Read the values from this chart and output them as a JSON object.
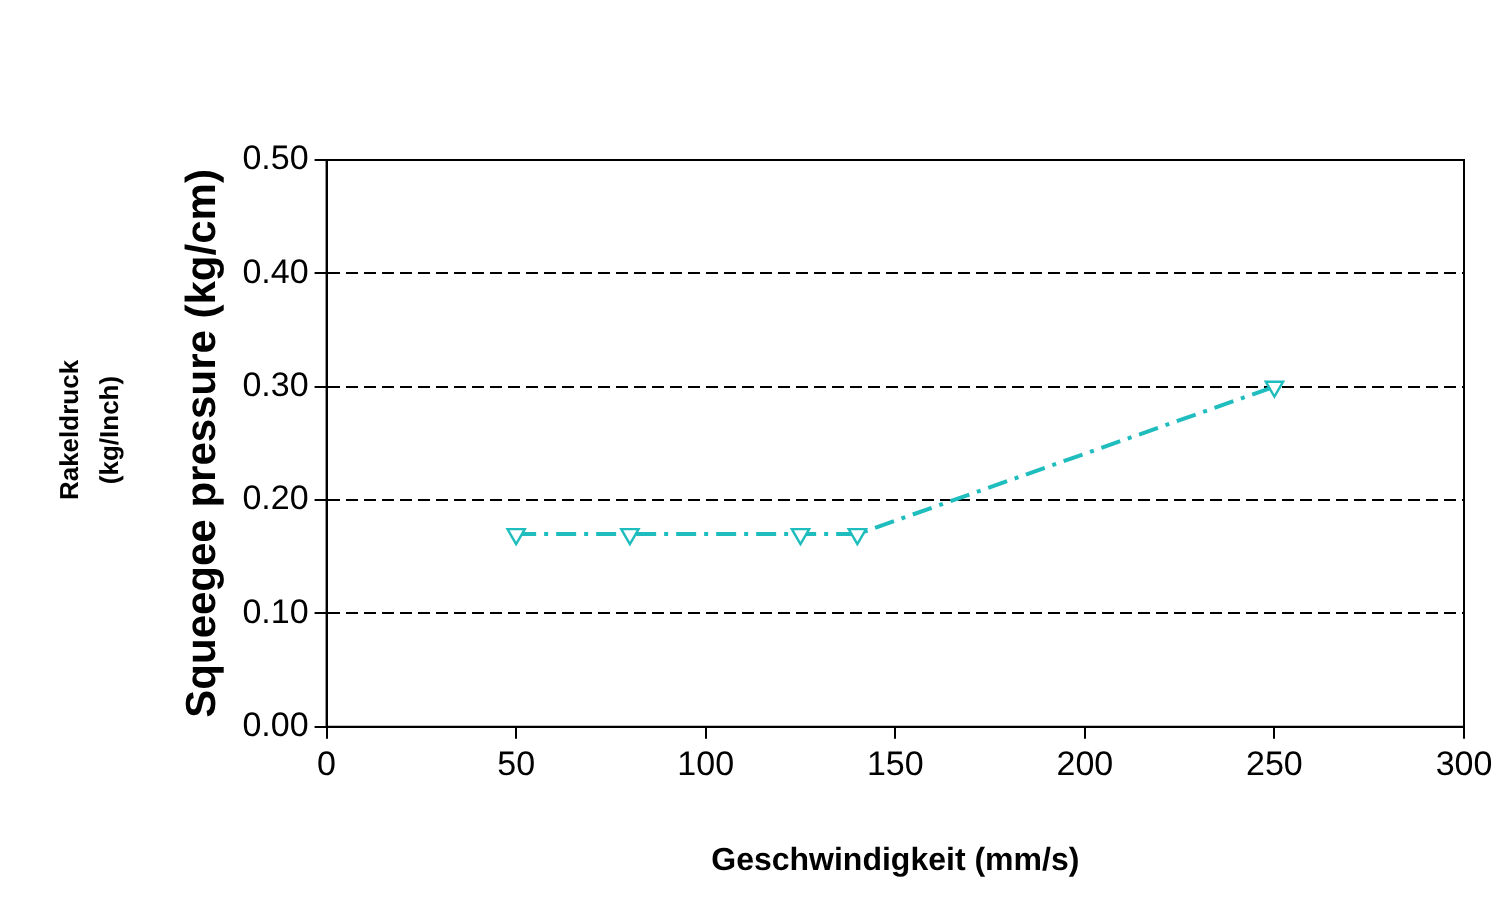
{
  "chart_data": {
    "type": "line",
    "xlabel": "Geschwindigkeit (mm/s)",
    "ylabel": "Squeegee pressure (kg/cm)",
    "annotations": [
      "Rakeldruck\n(kg/Inch)"
    ],
    "x": [
      50,
      80,
      125,
      140,
      250
    ],
    "series": [
      {
        "color": "#1fbdbd",
        "values": [
          0.17,
          0.17,
          0.17,
          0.17,
          0.3
        ]
      }
    ],
    "xlim": [
      0,
      300
    ],
    "xticks": [
      0,
      50,
      100,
      150,
      200,
      250,
      300
    ],
    "ylim": [
      0,
      0.5
    ],
    "yticks": [
      {
        "value": 0,
        "label": "0.00"
      },
      {
        "value": 0.1,
        "label": "0.10"
      },
      {
        "value": 0.2,
        "label": "0.20"
      },
      {
        "value": 0.3,
        "label": "0.30"
      },
      {
        "value": 0.4,
        "label": "0.40"
      },
      {
        "value": 0.5,
        "label": "0.50"
      }
    ],
    "grid": "y",
    "legend": false,
    "marker": "triangle",
    "line_style": "dashed"
  }
}
